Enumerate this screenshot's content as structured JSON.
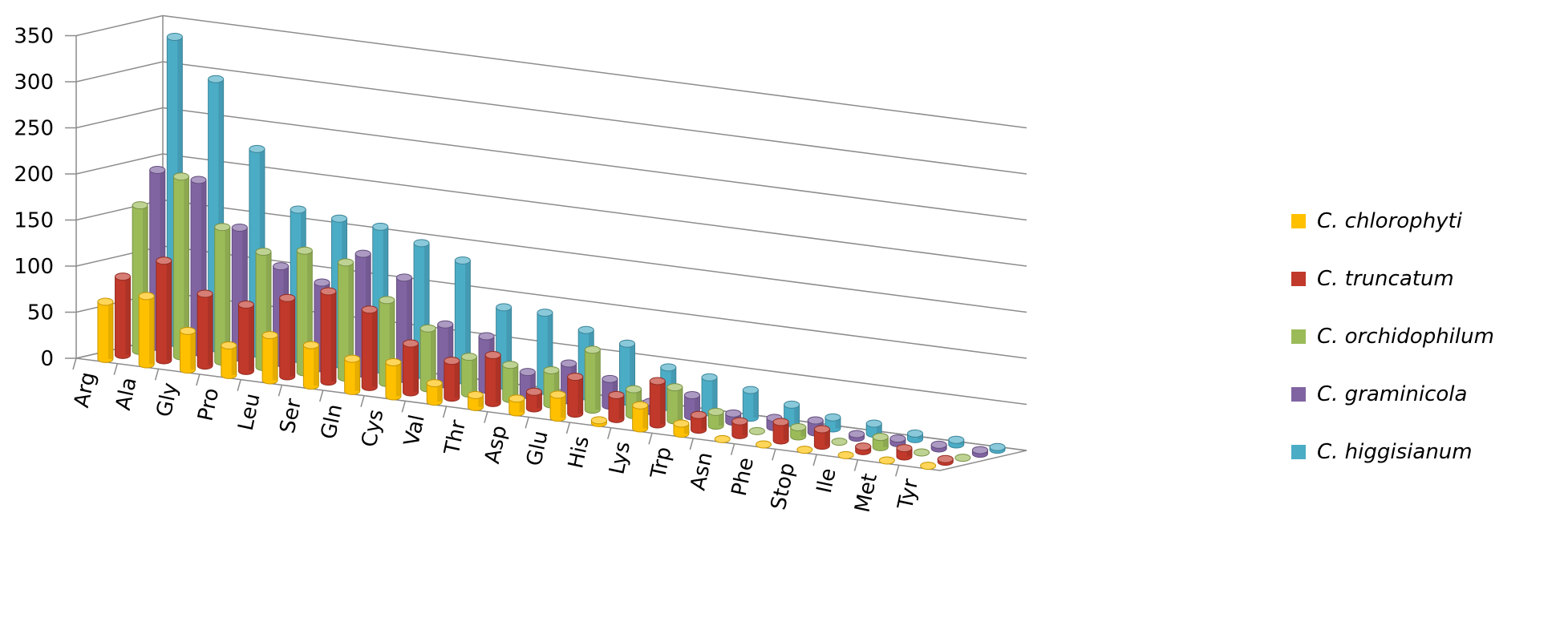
{
  "chart_data": {
    "type": "bar",
    "style": "3d-cylinder",
    "categories": [
      "Arg",
      "Ala",
      "Gly",
      "Pro",
      "Leu",
      "Ser",
      "Gln",
      "Cys",
      "Val",
      "Thr",
      "Asp",
      "Glu",
      "His",
      "Lys",
      "Trp",
      "Asn",
      "Phe",
      "Stop",
      "Ile",
      "Met",
      "Tyr"
    ],
    "y_ticks": [
      "0",
      "50",
      "100",
      "150",
      "200",
      "250",
      "300",
      "350"
    ],
    "ylim": [
      0,
      350
    ],
    "grid": true,
    "legend_position": "right",
    "series": [
      {
        "name": "C. chlorophyti",
        "color": "#ffc000",
        "values": [
          62,
          74,
          42,
          32,
          49,
          44,
          35,
          37,
          20,
          13,
          15,
          25,
          3,
          25,
          11,
          0,
          0,
          0,
          0,
          0,
          0
        ]
      },
      {
        "name": "C. truncatum",
        "color": "#c0392b",
        "values": [
          85,
          108,
          78,
          72,
          85,
          98,
          84,
          53,
          40,
          52,
          18,
          40,
          26,
          47,
          16,
          15,
          20,
          18,
          5,
          9,
          3
        ]
      },
      {
        "name": "C. orchidophilum",
        "color": "#9bbb59",
        "values": [
          158,
          195,
          146,
          125,
          132,
          125,
          90,
          65,
          40,
          37,
          37,
          65,
          28,
          36,
          15,
          0,
          10,
          0,
          11,
          0,
          0
        ]
      },
      {
        "name": "C. graminicola",
        "color": "#8064a2",
        "values": [
          192,
          187,
          141,
          105,
          93,
          130,
          110,
          65,
          58,
          25,
          40,
          29,
          10,
          23,
          9,
          10,
          13,
          4,
          5,
          4,
          4
        ]
      },
      {
        "name": "C. higgisianum",
        "color": "#4bacc6",
        "values": [
          332,
          292,
          222,
          162,
          158,
          155,
          143,
          130,
          85,
          85,
          72,
          63,
          43,
          38,
          30,
          20,
          12,
          11,
          6,
          5,
          3
        ]
      }
    ]
  }
}
